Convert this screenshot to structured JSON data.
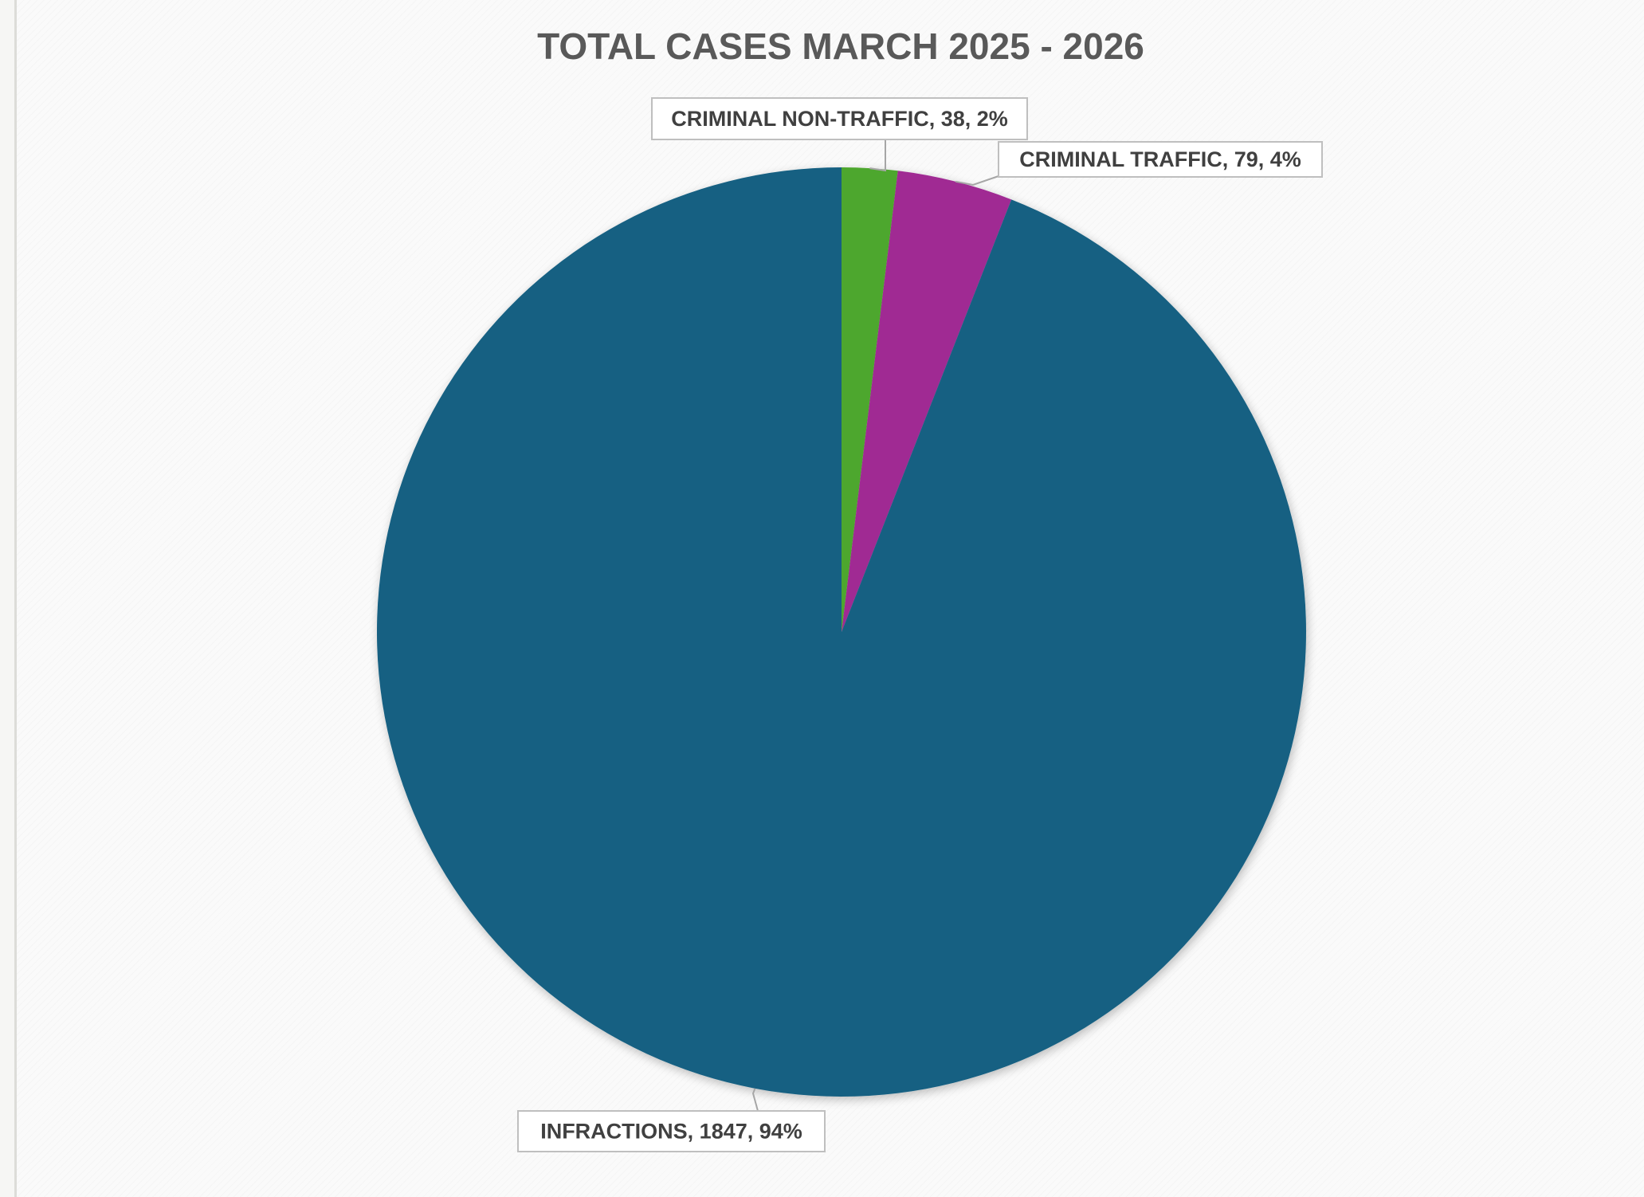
{
  "chart_data": {
    "type": "pie",
    "title": "TOTAL CASES MARCH 2025 - 2026",
    "start_angle_deg": 0,
    "direction": "clockwise",
    "categories": [
      "CRIMINAL NON-TRAFFIC",
      "CRIMINAL TRAFFIC",
      "INFRACTIONS"
    ],
    "values": [
      38,
      79,
      1847
    ],
    "percents": [
      "2%",
      "4%",
      "94%"
    ],
    "colors": [
      "#4ea72e",
      "#a02b93",
      "#156082"
    ],
    "data_labels": [
      "CRIMINAL NON-TRAFFIC, 38, 2%",
      "CRIMINAL TRAFFIC, 79, 4%",
      "INFRACTIONS, 1847, 94%"
    ],
    "legend": "none",
    "background": "#fafafa"
  }
}
